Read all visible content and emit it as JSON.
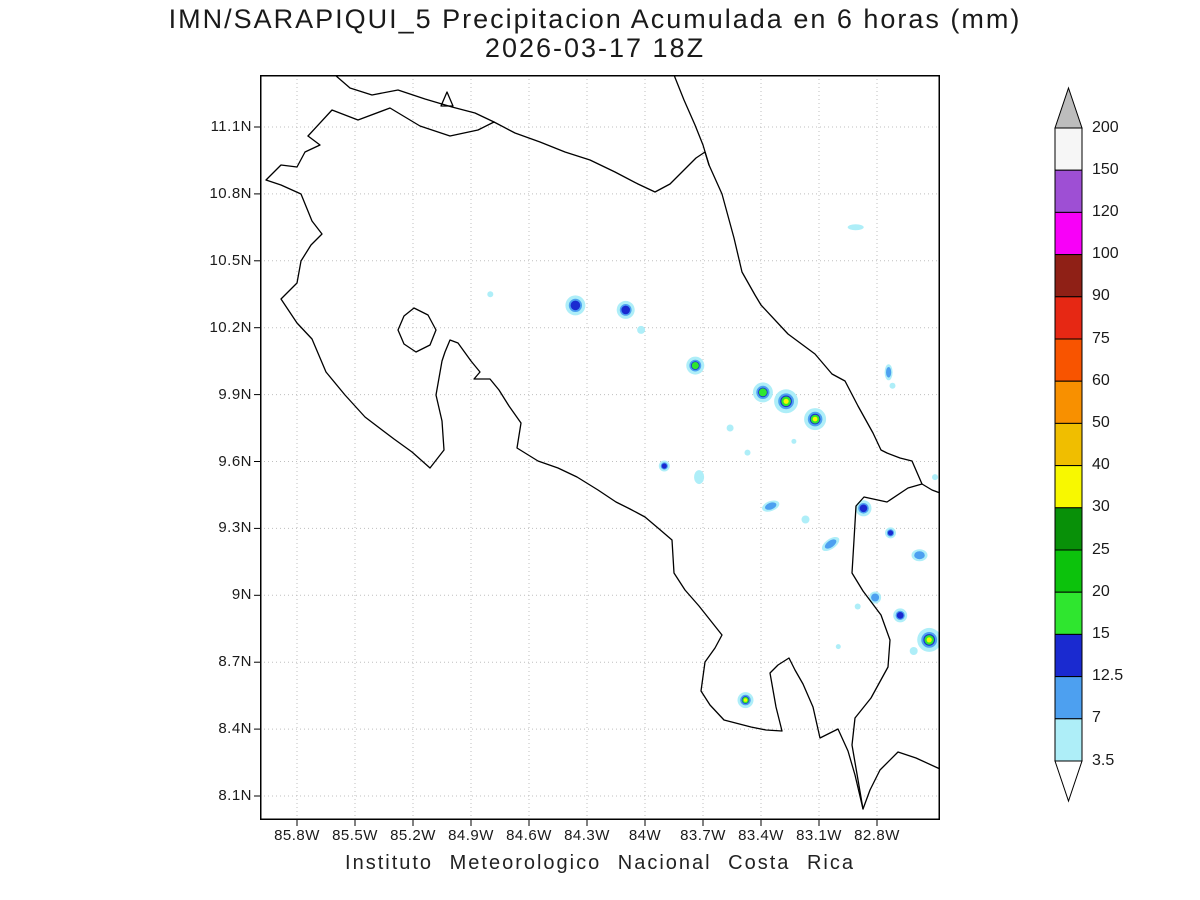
{
  "title": {
    "line1": "IMN/SARAPIQUI_5 Precipitacion Acumulada en 6 horas (mm)",
    "line2": "2026-03-17 18Z"
  },
  "footer": "Instituto Meteorologico Nacional Costa Rica",
  "axes": {
    "lat_ticks": [
      "11.1N",
      "10.8N",
      "10.5N",
      "10.2N",
      "9.9N",
      "9.6N",
      "9.3N",
      "9N",
      "8.7N",
      "8.4N",
      "8.1N"
    ],
    "lon_ticks": [
      "85.8W",
      "85.5W",
      "85.2W",
      "84.9W",
      "84.6W",
      "84.3W",
      "84W",
      "83.7W",
      "83.4W",
      "83.1W",
      "82.8W"
    ]
  },
  "colorbar": {
    "labels_top_to_bottom": [
      "200",
      "150",
      "120",
      "100",
      "90",
      "75",
      "60",
      "50",
      "40",
      "30",
      "25",
      "20",
      "15",
      "12.5",
      "7",
      "3.5"
    ],
    "above_max_color": "#bdbdbd",
    "below_min_color": "#ffffff"
  },
  "chart_data": {
    "type": "heatmap",
    "title": "IMN/SARAPIQUI_5 Precipitacion Acumulada en 6 horas (mm)",
    "valid_time": "2026-03-17 18Z",
    "units": "mm",
    "source": "Instituto Meteorologico Nacional Costa Rica",
    "map_region": "Costa Rica",
    "lon_extent_deg_w": [
      86.0,
      82.47
    ],
    "lat_extent_deg_n": [
      7.99,
      11.33
    ],
    "lat_tick_values_n": [
      11.1,
      10.8,
      10.5,
      10.2,
      9.9,
      9.6,
      9.3,
      9.0,
      8.7,
      8.4,
      8.1
    ],
    "lon_tick_values_w": [
      85.8,
      85.5,
      85.2,
      84.9,
      84.6,
      84.3,
      84.0,
      83.7,
      83.4,
      83.1,
      82.8
    ],
    "levels_mm": [
      3.5,
      7,
      12.5,
      15,
      20,
      25,
      30,
      40,
      50,
      60,
      75,
      90,
      100,
      120,
      150,
      200
    ],
    "levels_colors_low_to_high": [
      "#aeeef8",
      "#4da0f0",
      "#1a2ad0",
      "#2fe62f",
      "#0cc20c",
      "#089008",
      "#f8f800",
      "#f0be00",
      "#f89000",
      "#f85400",
      "#e62814",
      "#8f2016",
      "#f800f8",
      "#9e4fd4",
      "#f6f6f6"
    ],
    "grid_dotted": true,
    "spots": [
      {
        "lat": 10.3,
        "lon": 84.36,
        "mm": 14,
        "r": 10
      },
      {
        "lat": 10.28,
        "lon": 84.1,
        "mm": 13,
        "r": 9
      },
      {
        "lat": 10.19,
        "lon": 84.02,
        "mm": 5,
        "r": 4
      },
      {
        "lat": 10.35,
        "lon": 84.8,
        "mm": 5,
        "r": 3
      },
      {
        "lat": 10.03,
        "lon": 83.74,
        "mm": 16,
        "r": 9
      },
      {
        "lat": 9.91,
        "lon": 83.39,
        "mm": 22,
        "r": 10
      },
      {
        "lat": 9.87,
        "lon": 83.27,
        "mm": 32,
        "r": 12
      },
      {
        "lat": 9.79,
        "lon": 83.12,
        "mm": 35,
        "r": 11
      },
      {
        "lat": 9.75,
        "lon": 83.56,
        "mm": 5,
        "r": 3.5
      },
      {
        "lat": 9.64,
        "lon": 83.47,
        "mm": 5,
        "r": 3
      },
      {
        "lat": 9.58,
        "lon": 83.9,
        "mm": 13,
        "r": 5.5
      },
      {
        "lat": 9.53,
        "lon": 83.72,
        "mm": 6,
        "r": 5,
        "ry": 7
      },
      {
        "lat": 9.4,
        "lon": 83.35,
        "mm": 8,
        "r": 9,
        "ry": 5,
        "rot": -20
      },
      {
        "lat": 9.34,
        "lon": 83.17,
        "mm": 5,
        "r": 4
      },
      {
        "lat": 9.39,
        "lon": 82.87,
        "mm": 14,
        "r": 8
      },
      {
        "lat": 9.23,
        "lon": 83.04,
        "mm": 12,
        "r": 10,
        "ry": 5,
        "rot": -35
      },
      {
        "lat": 9.28,
        "lon": 82.73,
        "mm": 14,
        "r": 5.5
      },
      {
        "lat": 9.18,
        "lon": 82.58,
        "mm": 10,
        "r": 8,
        "ry": 6
      },
      {
        "lat": 9.53,
        "lon": 82.5,
        "mm": 5,
        "r": 3
      },
      {
        "lat": 8.99,
        "lon": 82.81,
        "mm": 9,
        "r": 6
      },
      {
        "lat": 8.95,
        "lon": 82.9,
        "mm": 5,
        "r": 3
      },
      {
        "lat": 8.91,
        "lon": 82.68,
        "mm": 13,
        "r": 7
      },
      {
        "lat": 8.8,
        "lon": 82.53,
        "mm": 35,
        "r": 12
      },
      {
        "lat": 8.75,
        "lon": 82.61,
        "mm": 6,
        "r": 4
      },
      {
        "lat": 8.77,
        "lon": 83.0,
        "mm": 4,
        "r": 2.5
      },
      {
        "lat": 8.53,
        "lon": 83.48,
        "mm": 30,
        "r": 8
      },
      {
        "lat": 10.65,
        "lon": 82.91,
        "mm": 4,
        "r": 8,
        "ry": 3
      },
      {
        "lat": 10.0,
        "lon": 82.74,
        "mm": 10,
        "r": 4,
        "ry": 8
      },
      {
        "lat": 9.94,
        "lon": 82.72,
        "mm": 4,
        "r": 3
      },
      {
        "lat": 9.69,
        "lon": 83.23,
        "mm": 4,
        "r": 2.5
      }
    ]
  }
}
